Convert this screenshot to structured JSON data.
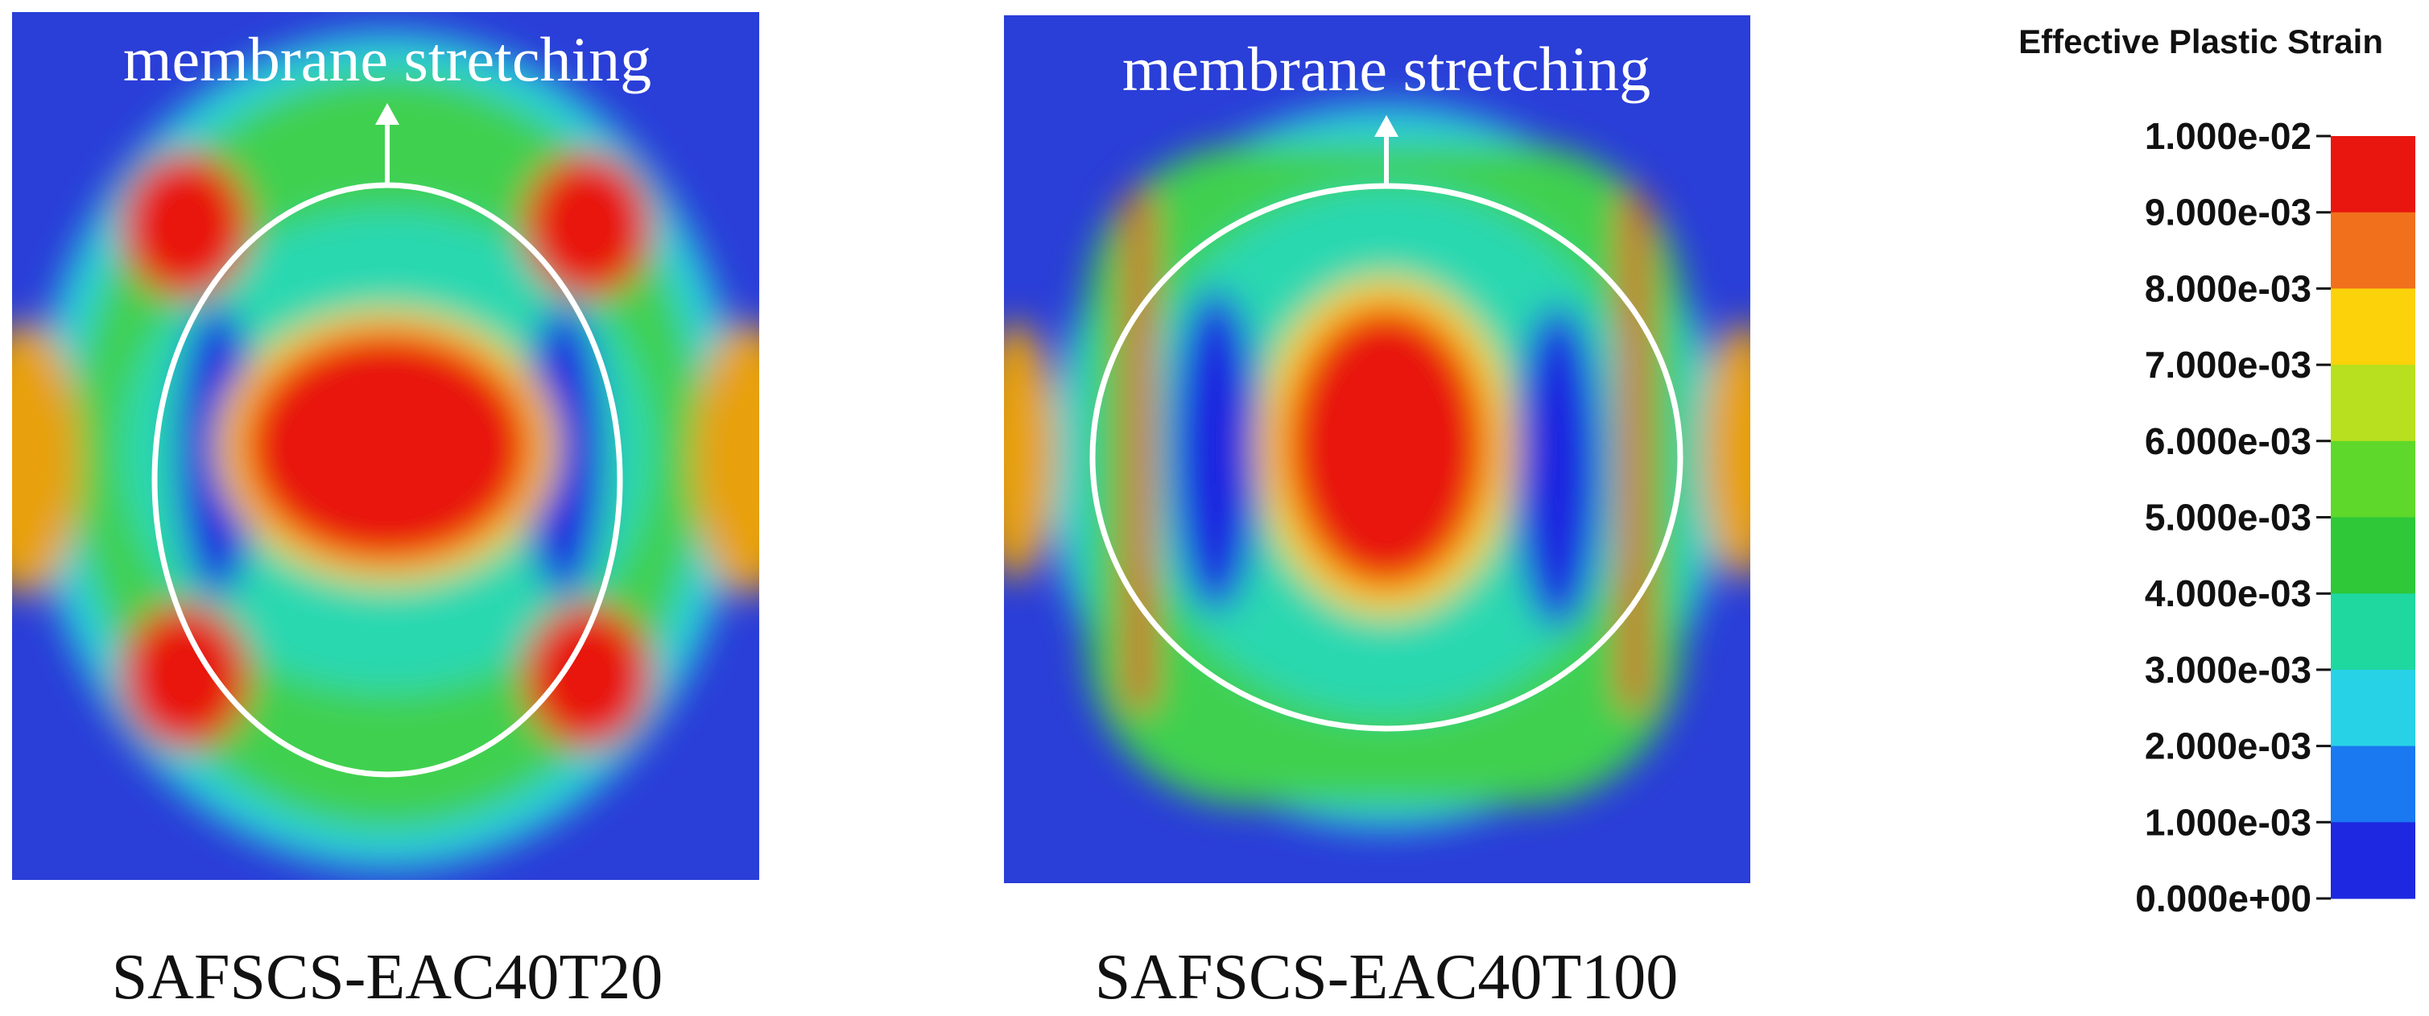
{
  "panels": [
    {
      "label": "SAFSCS-EAC40T20",
      "annotation": "membrane stretching"
    },
    {
      "label": "SAFSCS-EAC40T100",
      "annotation": "membrane stretching"
    }
  ],
  "legend": {
    "title": "Effective Plastic Strain",
    "labels": [
      "1.000e-02",
      "9.000e-03",
      "8.000e-03",
      "7.000e-03",
      "6.000e-03",
      "5.000e-03",
      "4.000e-03",
      "3.000e-03",
      "2.000e-03",
      "1.000e-03",
      "0.000e+00"
    ],
    "colors": [
      "#e8160e",
      "#f0701c",
      "#fcd20a",
      "#b8e01e",
      "#5ed82a",
      "#2ec838",
      "#1ed8a0",
      "#28d2e6",
      "#1a78f0",
      "#1e28e0"
    ]
  }
}
